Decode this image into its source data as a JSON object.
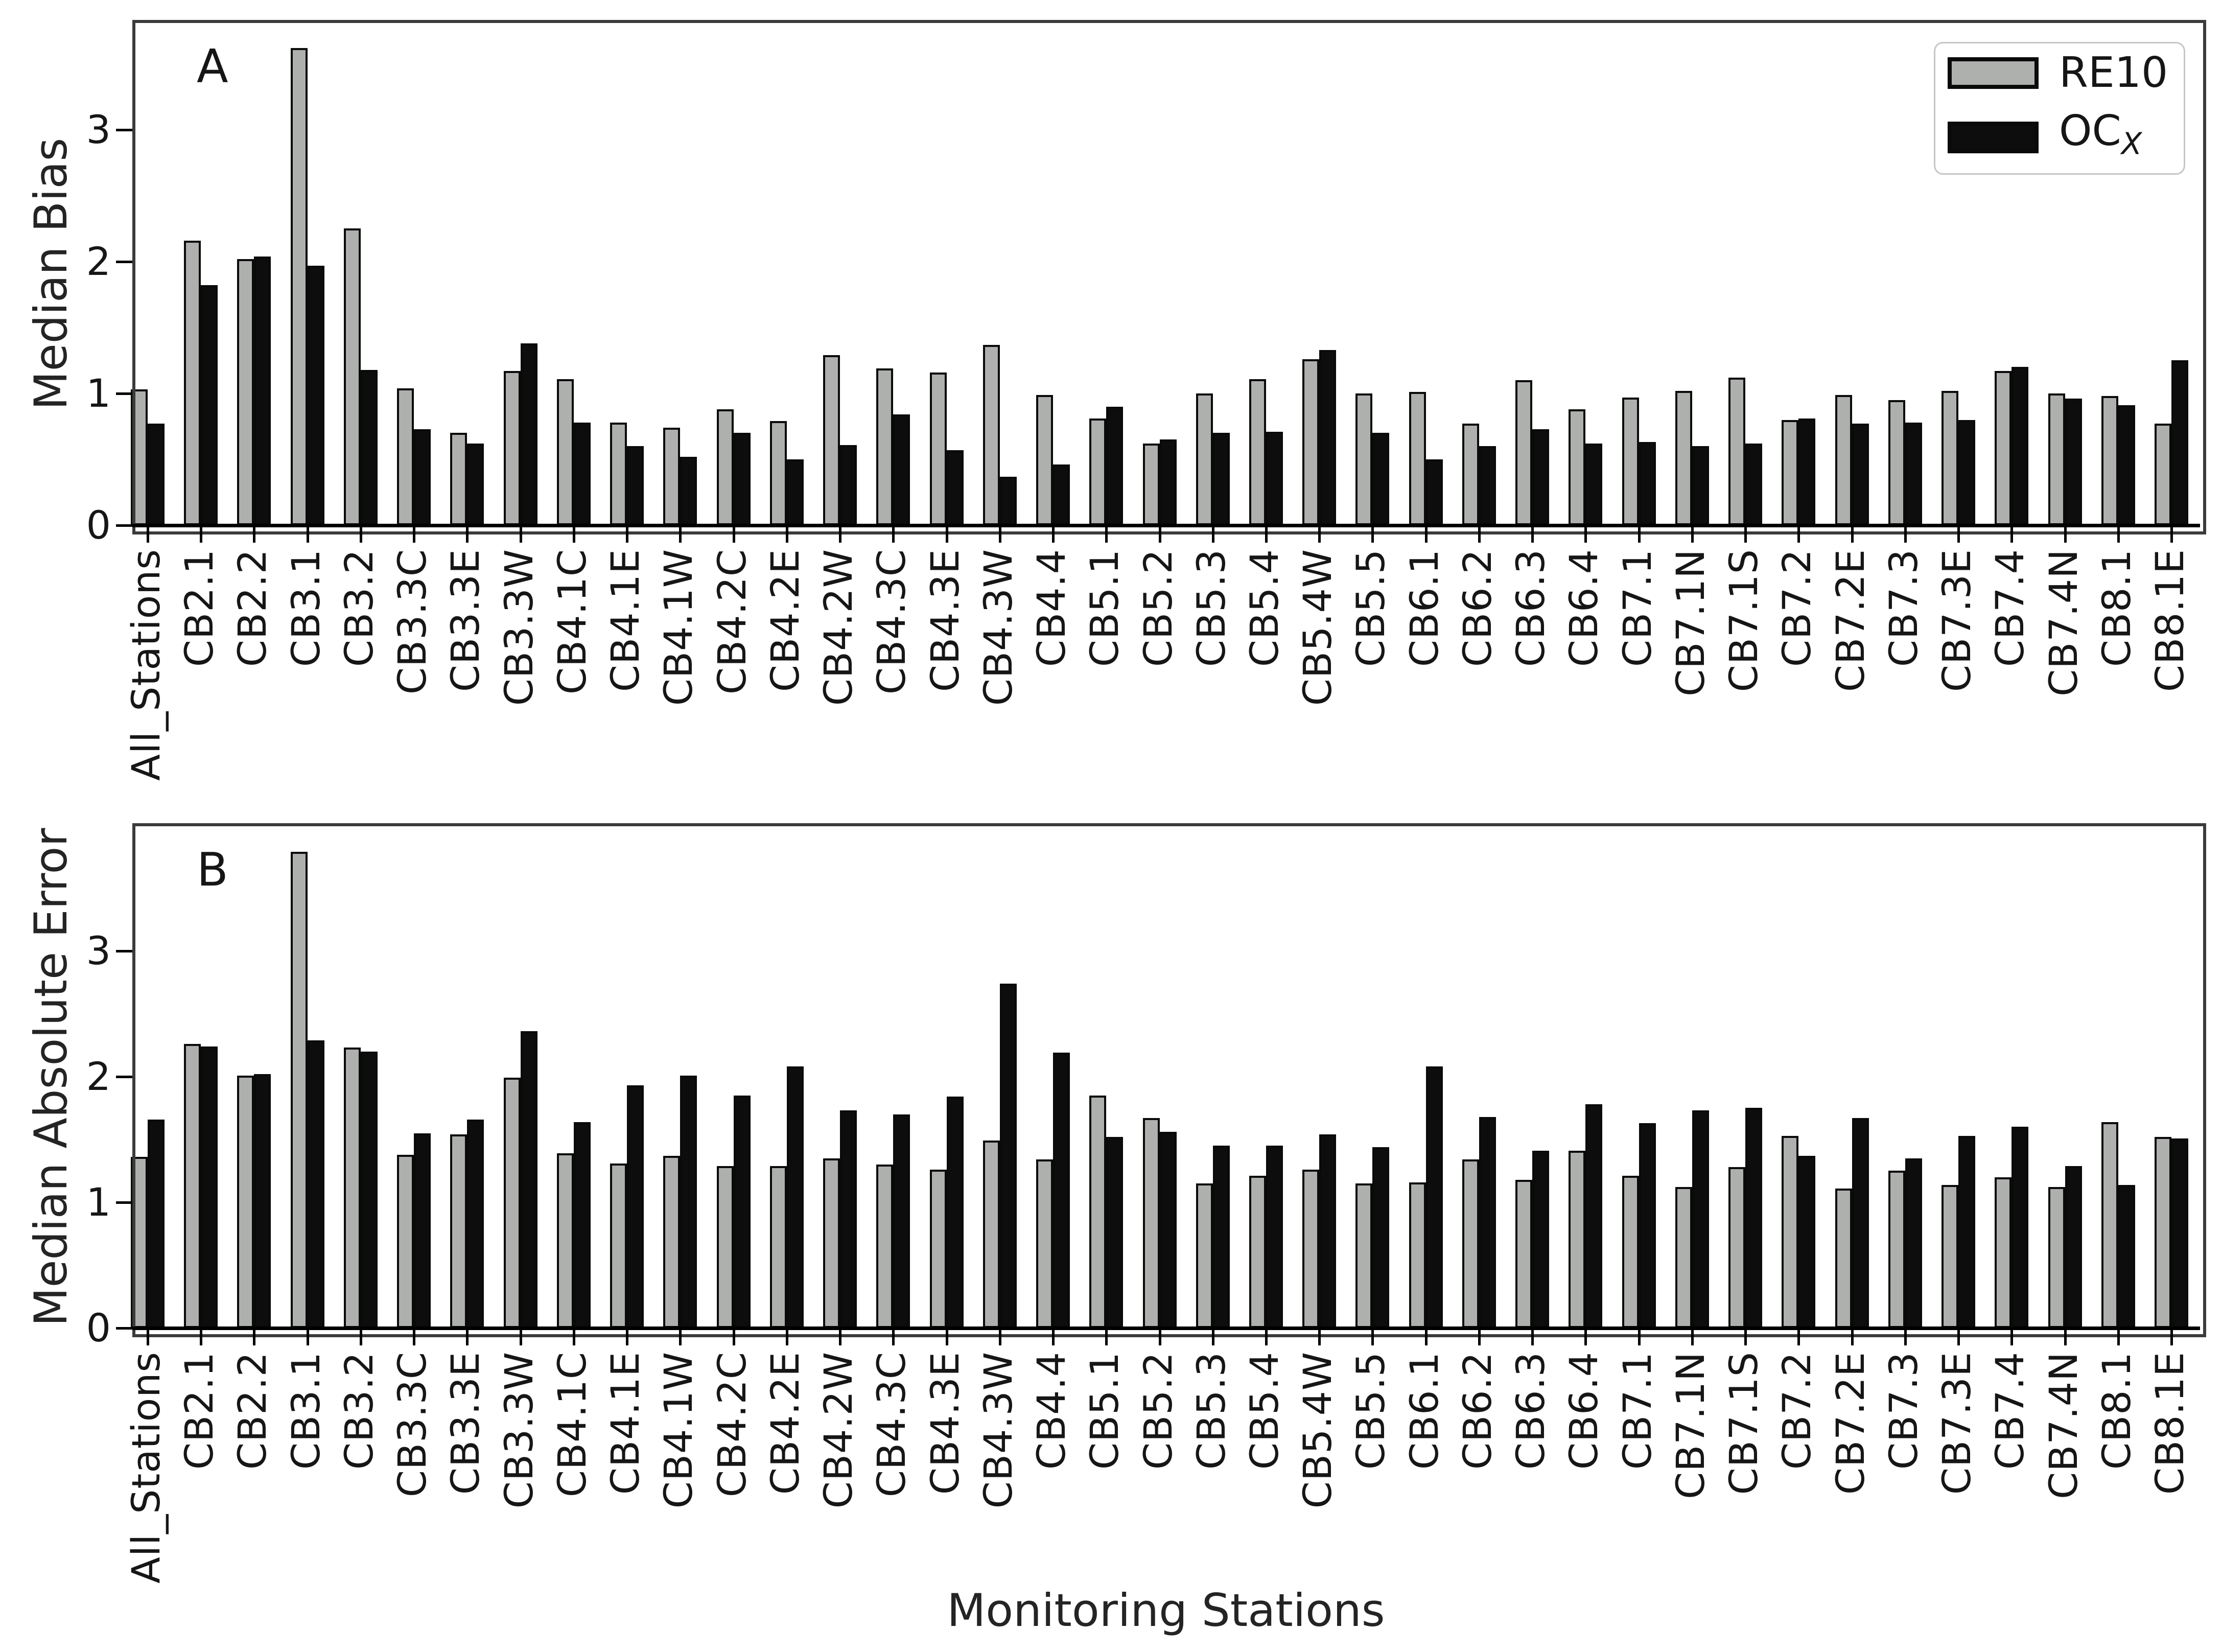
{
  "legend": {
    "items": [
      {
        "label": "RE10",
        "color": "#aeb0ad"
      },
      {
        "label_main": "OC",
        "label_sub": "X",
        "color": "#0d0d0d"
      }
    ]
  },
  "chart_data": [
    {
      "type": "bar",
      "panel_label": "A",
      "title": "",
      "xlabel": "",
      "ylabel": "Median Bias",
      "ylim": [
        0,
        3.81
      ],
      "yticks": [
        0,
        1,
        2,
        3
      ],
      "grid": false,
      "legend_position": "upper right",
      "categories": [
        "All_Stations",
        "CB2.1",
        "CB2.2",
        "CB3.1",
        "CB3.2",
        "CB3.3C",
        "CB3.3E",
        "CB3.3W",
        "CB4.1C",
        "CB4.1E",
        "CB4.1W",
        "CB4.2C",
        "CB4.2E",
        "CB4.2W",
        "CB4.3C",
        "CB4.3E",
        "CB4.3W",
        "CB4.4",
        "CB5.1",
        "CB5.2",
        "CB5.3",
        "CB5.4",
        "CB5.4W",
        "CB5.5",
        "CB6.1",
        "CB6.2",
        "CB6.3",
        "CB6.4",
        "CB7.1",
        "CB7.1N",
        "CB7.1S",
        "CB7.2",
        "CB7.2E",
        "CB7.3",
        "CB7.3E",
        "CB7.4",
        "CB7.4N",
        "CB8.1",
        "CB8.1E"
      ],
      "series": [
        {
          "name": "RE10",
          "color": "#aeb0ad",
          "values": [
            1.03,
            2.16,
            2.02,
            3.62,
            2.25,
            1.04,
            0.7,
            1.17,
            1.11,
            0.78,
            0.74,
            0.88,
            0.79,
            1.29,
            1.19,
            1.16,
            1.37,
            0.99,
            0.81,
            0.62,
            1.0,
            1.11,
            1.26,
            1.0,
            1.01,
            0.77,
            1.1,
            0.88,
            0.97,
            1.02,
            1.12,
            0.8,
            0.99,
            0.95,
            1.02,
            1.17,
            1.0,
            0.98,
            0.77
          ]
        },
        {
          "name": "OCX",
          "color": "#0d0d0d",
          "values": [
            0.77,
            1.82,
            2.04,
            1.97,
            1.18,
            0.73,
            0.62,
            1.38,
            0.78,
            0.6,
            0.52,
            0.7,
            0.5,
            0.61,
            0.84,
            0.57,
            0.37,
            0.46,
            0.9,
            0.65,
            0.7,
            0.71,
            1.33,
            0.7,
            0.5,
            0.6,
            0.73,
            0.62,
            0.63,
            0.6,
            0.62,
            0.81,
            0.77,
            0.78,
            0.8,
            1.2,
            0.96,
            0.91,
            1.25
          ]
        }
      ]
    },
    {
      "type": "bar",
      "panel_label": "B",
      "title": "",
      "xlabel": "Monitoring Stations",
      "ylabel": "Median Absolute Error",
      "ylim": [
        0,
        3.99
      ],
      "yticks": [
        0,
        1,
        2,
        3
      ],
      "grid": false,
      "legend_position": "none",
      "categories": [
        "All_Stations",
        "CB2.1",
        "CB2.2",
        "CB3.1",
        "CB3.2",
        "CB3.3C",
        "CB3.3E",
        "CB3.3W",
        "CB4.1C",
        "CB4.1E",
        "CB4.1W",
        "CB4.2C",
        "CB4.2E",
        "CB4.2W",
        "CB4.3C",
        "CB4.3E",
        "CB4.3W",
        "CB4.4",
        "CB5.1",
        "CB5.2",
        "CB5.3",
        "CB5.4",
        "CB5.4W",
        "CB5.5",
        "CB6.1",
        "CB6.2",
        "CB6.3",
        "CB6.4",
        "CB7.1",
        "CB7.1N",
        "CB7.1S",
        "CB7.2",
        "CB7.2E",
        "CB7.3",
        "CB7.3E",
        "CB7.4",
        "CB7.4N",
        "CB8.1",
        "CB8.1E"
      ],
      "series": [
        {
          "name": "RE10",
          "color": "#aeb0ad",
          "values": [
            1.36,
            2.26,
            2.01,
            3.79,
            2.23,
            1.38,
            1.54,
            1.99,
            1.39,
            1.31,
            1.37,
            1.29,
            1.29,
            1.35,
            1.3,
            1.26,
            1.49,
            1.34,
            1.85,
            1.67,
            1.15,
            1.21,
            1.26,
            1.15,
            1.16,
            1.34,
            1.18,
            1.41,
            1.21,
            1.12,
            1.28,
            1.53,
            1.11,
            1.25,
            1.14,
            1.2,
            1.12,
            1.64,
            1.52
          ]
        },
        {
          "name": "OCX",
          "color": "#0d0d0d",
          "values": [
            1.66,
            2.24,
            2.02,
            2.29,
            2.2,
            1.55,
            1.66,
            2.36,
            1.64,
            1.93,
            2.01,
            1.85,
            2.08,
            1.73,
            1.7,
            1.84,
            2.74,
            2.19,
            1.52,
            1.56,
            1.45,
            1.45,
            1.54,
            1.44,
            2.08,
            1.68,
            1.41,
            1.78,
            1.63,
            1.73,
            1.75,
            1.37,
            1.67,
            1.35,
            1.53,
            1.6,
            1.29,
            1.14,
            1.51
          ]
        }
      ]
    }
  ]
}
